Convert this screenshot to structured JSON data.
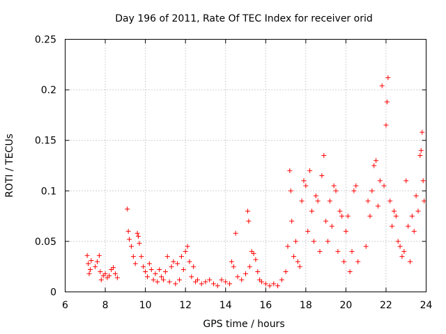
{
  "chart_data": {
    "type": "scatter",
    "title": "Day 196 of 2011, Rate Of TEC Index for receiver orid",
    "xlabel": "GPS time / hours",
    "ylabel": "ROTI / TECUs",
    "xlim": [
      6,
      24
    ],
    "ylim": [
      0,
      0.25
    ],
    "x_ticks": [
      6,
      8,
      10,
      12,
      14,
      16,
      18,
      20,
      22,
      24
    ],
    "y_ticks": [
      0,
      0.05,
      0.1,
      0.15,
      0.2,
      0.25
    ],
    "x_tick_labels": [
      "6",
      "8",
      "10",
      "12",
      "14",
      "16",
      "18",
      "20",
      "22",
      "24"
    ],
    "y_tick_labels": [
      "0",
      "0.05",
      "0.1",
      "0.15",
      "0.2",
      "0.25"
    ],
    "grid": true,
    "marker": "+",
    "color": "#ff0000",
    "series": [
      {
        "name": "ROTI",
        "points": [
          [
            7.1,
            0.036
          ],
          [
            7.15,
            0.028
          ],
          [
            7.2,
            0.018
          ],
          [
            7.25,
            0.022
          ],
          [
            7.3,
            0.031
          ],
          [
            7.5,
            0.025
          ],
          [
            7.6,
            0.03
          ],
          [
            7.7,
            0.036
          ],
          [
            7.75,
            0.02
          ],
          [
            7.8,
            0.012
          ],
          [
            7.9,
            0.016
          ],
          [
            8.0,
            0.018
          ],
          [
            8.1,
            0.014
          ],
          [
            8.2,
            0.016
          ],
          [
            8.3,
            0.022
          ],
          [
            8.4,
            0.024
          ],
          [
            8.5,
            0.018
          ],
          [
            8.6,
            0.014
          ],
          [
            9.1,
            0.082
          ],
          [
            9.15,
            0.06
          ],
          [
            9.2,
            0.052
          ],
          [
            9.3,
            0.045
          ],
          [
            9.4,
            0.035
          ],
          [
            9.5,
            0.028
          ],
          [
            9.6,
            0.058
          ],
          [
            9.65,
            0.055
          ],
          [
            9.7,
            0.048
          ],
          [
            9.8,
            0.035
          ],
          [
            9.9,
            0.025
          ],
          [
            10.0,
            0.02
          ],
          [
            10.1,
            0.015
          ],
          [
            10.2,
            0.028
          ],
          [
            10.3,
            0.022
          ],
          [
            10.4,
            0.012
          ],
          [
            10.5,
            0.018
          ],
          [
            10.6,
            0.01
          ],
          [
            10.7,
            0.022
          ],
          [
            10.8,
            0.015
          ],
          [
            10.9,
            0.012
          ],
          [
            11.0,
            0.02
          ],
          [
            11.1,
            0.035
          ],
          [
            11.2,
            0.01
          ],
          [
            11.3,
            0.025
          ],
          [
            11.4,
            0.03
          ],
          [
            11.5,
            0.008
          ],
          [
            11.6,
            0.028
          ],
          [
            11.7,
            0.012
          ],
          [
            11.8,
            0.035
          ],
          [
            11.9,
            0.022
          ],
          [
            12.0,
            0.04
          ],
          [
            12.1,
            0.045
          ],
          [
            12.2,
            0.03
          ],
          [
            12.3,
            0.015
          ],
          [
            12.4,
            0.025
          ],
          [
            12.5,
            0.01
          ],
          [
            12.6,
            0.012
          ],
          [
            12.8,
            0.008
          ],
          [
            13.0,
            0.01
          ],
          [
            13.2,
            0.012
          ],
          [
            13.4,
            0.008
          ],
          [
            13.6,
            0.006
          ],
          [
            13.8,
            0.012
          ],
          [
            14.0,
            0.01
          ],
          [
            14.2,
            0.008
          ],
          [
            14.3,
            0.03
          ],
          [
            14.4,
            0.025
          ],
          [
            14.5,
            0.058
          ],
          [
            14.6,
            0.015
          ],
          [
            14.8,
            0.012
          ],
          [
            15.0,
            0.018
          ],
          [
            15.1,
            0.08
          ],
          [
            15.15,
            0.07
          ],
          [
            15.2,
            0.025
          ],
          [
            15.3,
            0.04
          ],
          [
            15.4,
            0.038
          ],
          [
            15.5,
            0.032
          ],
          [
            15.6,
            0.02
          ],
          [
            15.7,
            0.012
          ],
          [
            15.8,
            0.01
          ],
          [
            16.0,
            0.008
          ],
          [
            16.2,
            0.006
          ],
          [
            16.4,
            0.008
          ],
          [
            16.6,
            0.006
          ],
          [
            16.8,
            0.012
          ],
          [
            17.0,
            0.02
          ],
          [
            17.1,
            0.045
          ],
          [
            17.2,
            0.12
          ],
          [
            17.25,
            0.1
          ],
          [
            17.3,
            0.07
          ],
          [
            17.4,
            0.035
          ],
          [
            17.5,
            0.05
          ],
          [
            17.6,
            0.03
          ],
          [
            17.7,
            0.025
          ],
          [
            17.8,
            0.09
          ],
          [
            17.9,
            0.11
          ],
          [
            18.0,
            0.105
          ],
          [
            18.1,
            0.06
          ],
          [
            18.2,
            0.12
          ],
          [
            18.3,
            0.08
          ],
          [
            18.4,
            0.05
          ],
          [
            18.5,
            0.095
          ],
          [
            18.6,
            0.09
          ],
          [
            18.7,
            0.04
          ],
          [
            18.8,
            0.115
          ],
          [
            18.9,
            0.135
          ],
          [
            19.0,
            0.07
          ],
          [
            19.1,
            0.05
          ],
          [
            19.2,
            0.09
          ],
          [
            19.3,
            0.065
          ],
          [
            19.4,
            0.105
          ],
          [
            19.5,
            0.1
          ],
          [
            19.6,
            0.04
          ],
          [
            19.7,
            0.08
          ],
          [
            19.8,
            0.075
          ],
          [
            19.9,
            0.03
          ],
          [
            20.0,
            0.06
          ],
          [
            20.1,
            0.075
          ],
          [
            20.2,
            0.02
          ],
          [
            20.3,
            0.04
          ],
          [
            20.4,
            0.1
          ],
          [
            20.5,
            0.105
          ],
          [
            20.6,
            0.03
          ],
          [
            21.0,
            0.045
          ],
          [
            21.1,
            0.09
          ],
          [
            21.2,
            0.075
          ],
          [
            21.3,
            0.1
          ],
          [
            21.4,
            0.125
          ],
          [
            21.5,
            0.13
          ],
          [
            21.6,
            0.085
          ],
          [
            21.7,
            0.11
          ],
          [
            21.8,
            0.204
          ],
          [
            21.9,
            0.105
          ],
          [
            22.0,
            0.165
          ],
          [
            22.05,
            0.188
          ],
          [
            22.1,
            0.212
          ],
          [
            22.2,
            0.09
          ],
          [
            22.3,
            0.065
          ],
          [
            22.4,
            0.08
          ],
          [
            22.5,
            0.075
          ],
          [
            22.6,
            0.05
          ],
          [
            22.7,
            0.045
          ],
          [
            22.8,
            0.035
          ],
          [
            22.9,
            0.04
          ],
          [
            23.0,
            0.11
          ],
          [
            23.1,
            0.065
          ],
          [
            23.2,
            0.03
          ],
          [
            23.3,
            0.075
          ],
          [
            23.4,
            0.06
          ],
          [
            23.5,
            0.095
          ],
          [
            23.6,
            0.08
          ],
          [
            23.7,
            0.135
          ],
          [
            23.75,
            0.14
          ],
          [
            23.8,
            0.158
          ],
          [
            23.85,
            0.11
          ],
          [
            23.9,
            0.09
          ]
        ]
      }
    ]
  }
}
